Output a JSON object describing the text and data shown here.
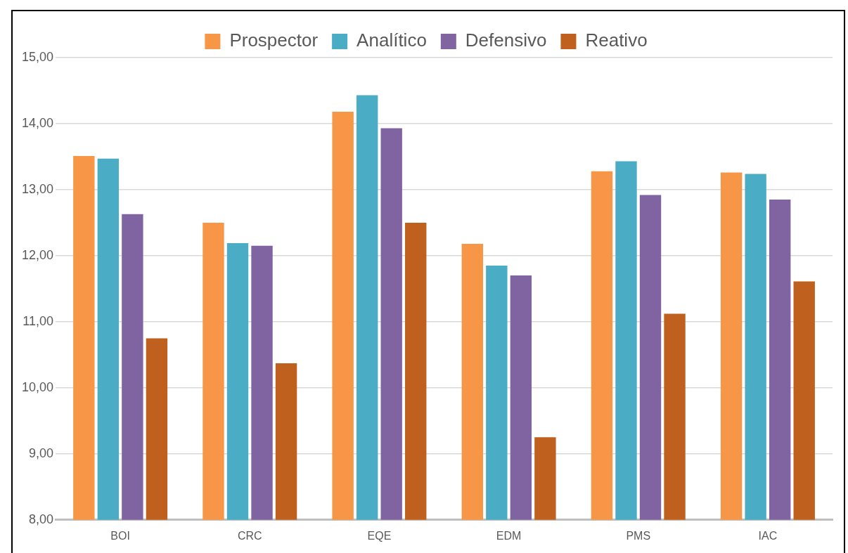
{
  "chart_data": {
    "type": "bar",
    "categories": [
      "BOI",
      "CRC",
      "EQE",
      "EDM",
      "PMS",
      "IAC"
    ],
    "series": [
      {
        "name": "Prospector",
        "color": "#f79646",
        "values": [
          13.51,
          12.5,
          14.18,
          12.18,
          13.28,
          13.26
        ]
      },
      {
        "name": "Analítico",
        "color": "#4bacc6",
        "values": [
          13.47,
          12.19,
          14.43,
          11.85,
          13.43,
          13.24
        ]
      },
      {
        "name": "Defensivo",
        "color": "#8064a2",
        "values": [
          12.63,
          12.15,
          13.93,
          11.7,
          12.92,
          12.85
        ]
      },
      {
        "name": "Reativo",
        "color": "#c0601e",
        "values": [
          10.75,
          10.37,
          12.5,
          9.25,
          11.12,
          11.61
        ]
      }
    ],
    "ylim": [
      8,
      15
    ],
    "yticks": [
      {
        "value": 8,
        "label": "8,00"
      },
      {
        "value": 9,
        "label": "9,00"
      },
      {
        "value": 10,
        "label": "10,00"
      },
      {
        "value": 11,
        "label": "11,00"
      },
      {
        "value": 12,
        "label": "12,00"
      },
      {
        "value": 13,
        "label": "13,00"
      },
      {
        "value": 14,
        "label": "14,00"
      },
      {
        "value": 15,
        "label": "15,00"
      }
    ],
    "grid": "y",
    "legend": "top"
  }
}
